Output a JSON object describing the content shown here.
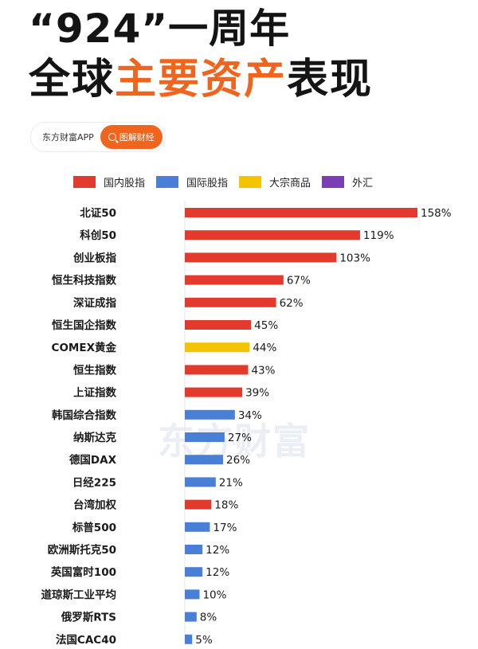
{
  "header": {
    "title_line1": "“924”一周年",
    "title_line2_black1": "全球",
    "title_line2_accent": "主要资产",
    "title_line2_black2": "表现"
  },
  "brand": {
    "name": "东方财富APP",
    "tag": "图解财经"
  },
  "watermark": "东方财富",
  "colors": {
    "accent": "#f0641e",
    "domestic": "#e23b2e",
    "international": "#4a7fd8",
    "commodity": "#f5c400",
    "fx": "#7b3fb5"
  },
  "chart_data": {
    "type": "bar",
    "orientation": "horizontal",
    "legend": [
      {
        "label": "国内股指",
        "color": "#e23b2e"
      },
      {
        "label": "国际股指",
        "color": "#4a7fd8"
      },
      {
        "label": "大宗商品",
        "color": "#f5c400"
      },
      {
        "label": "外汇",
        "color": "#7b3fb5"
      }
    ],
    "categories": [
      "北证50",
      "科创50",
      "创业板指",
      "恒生科技指数",
      "深证成指",
      "恒生国企指数",
      "COMEX黄金",
      "恒生指数",
      "上证指数",
      "韩国综合指数",
      "纳斯达克",
      "德国DAX",
      "日经225",
      "台湾加权",
      "标普500",
      "欧洲斯托克50",
      "英国富时100",
      "道琼斯工业平均",
      "俄罗斯RTS",
      "法国CAC40"
    ],
    "values": [
      158,
      119,
      103,
      67,
      62,
      45,
      44,
      43,
      39,
      34,
      27,
      26,
      21,
      18,
      17,
      12,
      12,
      10,
      8,
      5
    ],
    "value_labels": [
      "158%",
      "119%",
      "103%",
      "67%",
      "62%",
      "45%",
      "44%",
      "43%",
      "39%",
      "34%",
      "27%",
      "26%",
      "21%",
      "18%",
      "17%",
      "12%",
      "12%",
      "10%",
      "8%",
      "5%"
    ],
    "groups": [
      0,
      0,
      0,
      0,
      0,
      0,
      2,
      0,
      0,
      1,
      1,
      1,
      1,
      0,
      1,
      1,
      1,
      1,
      1,
      1
    ],
    "unit": "%",
    "grid": false
  }
}
